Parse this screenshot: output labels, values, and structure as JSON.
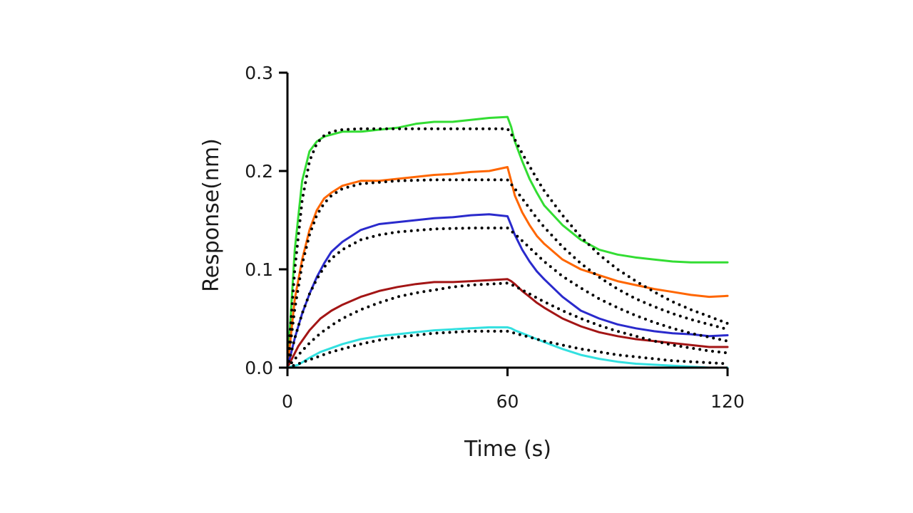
{
  "chart_data": {
    "type": "line",
    "title": "",
    "xlabel": "Time (s)",
    "ylabel": "Response(nm)",
    "xlim": [
      0,
      120
    ],
    "ylim": [
      0,
      0.3
    ],
    "x_ticks": [
      0,
      60,
      120
    ],
    "x_tick_labels": [
      "0",
      "60",
      "120"
    ],
    "y_ticks": [
      0,
      0.1,
      0.2,
      0.3
    ],
    "y_tick_labels": [
      "0.0",
      "0.1",
      "0.2",
      "0.3"
    ],
    "grid": false,
    "legend": "none",
    "series": [
      {
        "color": "#33dd33",
        "x": [
          0,
          2,
          4,
          6,
          8,
          10,
          15,
          20,
          25,
          30,
          35,
          40,
          45,
          50,
          55,
          60,
          61,
          62,
          64,
          66,
          68,
          70,
          75,
          80,
          85,
          90,
          95,
          100,
          105,
          110,
          115,
          120
        ],
        "y": [
          0,
          0.12,
          0.19,
          0.22,
          0.23,
          0.235,
          0.24,
          0.24,
          0.242,
          0.244,
          0.248,
          0.25,
          0.25,
          0.252,
          0.254,
          0.255,
          0.245,
          0.23,
          0.21,
          0.192,
          0.178,
          0.165,
          0.145,
          0.13,
          0.12,
          0.115,
          0.112,
          0.11,
          0.108,
          0.107,
          0.107,
          0.107
        ]
      },
      {
        "color": "#ff6600",
        "x": [
          0,
          2,
          4,
          6,
          8,
          10,
          12,
          15,
          20,
          25,
          30,
          35,
          40,
          45,
          50,
          55,
          60,
          61,
          62,
          64,
          66,
          68,
          70,
          75,
          80,
          85,
          90,
          95,
          100,
          105,
          110,
          115,
          120
        ],
        "y": [
          0,
          0.07,
          0.11,
          0.14,
          0.16,
          0.172,
          0.178,
          0.185,
          0.19,
          0.19,
          0.192,
          0.194,
          0.196,
          0.197,
          0.199,
          0.2,
          0.204,
          0.19,
          0.175,
          0.158,
          0.145,
          0.134,
          0.126,
          0.11,
          0.1,
          0.094,
          0.088,
          0.084,
          0.08,
          0.077,
          0.074,
          0.072,
          0.073
        ]
      },
      {
        "color": "#2a2acc",
        "x": [
          0,
          2,
          4,
          6,
          8,
          10,
          12,
          15,
          20,
          25,
          30,
          35,
          40,
          45,
          50,
          55,
          60,
          61,
          62,
          64,
          66,
          68,
          70,
          75,
          80,
          85,
          90,
          95,
          100,
          105,
          110,
          115,
          120
        ],
        "y": [
          0,
          0.03,
          0.055,
          0.075,
          0.092,
          0.106,
          0.118,
          0.128,
          0.14,
          0.146,
          0.148,
          0.15,
          0.152,
          0.153,
          0.155,
          0.156,
          0.154,
          0.145,
          0.135,
          0.12,
          0.108,
          0.098,
          0.09,
          0.072,
          0.058,
          0.05,
          0.044,
          0.04,
          0.037,
          0.035,
          0.034,
          0.032,
          0.033
        ]
      },
      {
        "color": "#a31515",
        "x": [
          0,
          3,
          6,
          9,
          12,
          15,
          20,
          25,
          30,
          35,
          40,
          45,
          50,
          55,
          60,
          61,
          62,
          64,
          66,
          68,
          70,
          75,
          80,
          85,
          90,
          95,
          100,
          105,
          110,
          115,
          120
        ],
        "y": [
          0,
          0.022,
          0.038,
          0.05,
          0.058,
          0.064,
          0.072,
          0.078,
          0.082,
          0.085,
          0.087,
          0.087,
          0.088,
          0.089,
          0.09,
          0.088,
          0.085,
          0.078,
          0.072,
          0.066,
          0.061,
          0.05,
          0.042,
          0.036,
          0.032,
          0.029,
          0.027,
          0.025,
          0.023,
          0.021,
          0.021
        ]
      },
      {
        "color": "#33e0e0",
        "x": [
          0,
          3,
          6,
          9,
          12,
          15,
          20,
          25,
          30,
          35,
          40,
          45,
          50,
          55,
          60,
          61,
          62,
          64,
          66,
          68,
          70,
          75,
          80,
          85,
          90,
          95,
          100,
          105,
          110,
          115,
          120
        ],
        "y": [
          0,
          0.003,
          0.01,
          0.016,
          0.02,
          0.024,
          0.029,
          0.032,
          0.034,
          0.036,
          0.038,
          0.039,
          0.04,
          0.041,
          0.041,
          0.04,
          0.038,
          0.035,
          0.032,
          0.029,
          0.026,
          0.019,
          0.013,
          0.009,
          0.006,
          0.004,
          0.003,
          0.002,
          0.001,
          0.0,
          0.0
        ]
      },
      {
        "color": "#000000",
        "style": "dotted",
        "x": [
          0,
          2,
          4,
          6,
          8,
          10,
          12,
          15,
          20,
          30,
          40,
          50,
          60,
          62,
          64,
          66,
          68,
          70,
          75,
          80,
          85,
          90,
          95,
          100,
          105,
          110,
          115,
          120
        ],
        "y": [
          0,
          0.1,
          0.17,
          0.21,
          0.228,
          0.236,
          0.24,
          0.242,
          0.243,
          0.243,
          0.243,
          0.243,
          0.243,
          0.232,
          0.218,
          0.205,
          0.192,
          0.18,
          0.155,
          0.133,
          0.115,
          0.1,
          0.088,
          0.077,
          0.067,
          0.059,
          0.052,
          0.045
        ]
      },
      {
        "color": "#000000",
        "style": "dotted",
        "x": [
          0,
          2,
          4,
          6,
          8,
          10,
          12,
          15,
          20,
          30,
          40,
          50,
          60,
          62,
          64,
          66,
          68,
          70,
          75,
          80,
          85,
          90,
          95,
          100,
          105,
          110,
          115,
          120
        ],
        "y": [
          0,
          0.06,
          0.105,
          0.135,
          0.155,
          0.167,
          0.175,
          0.182,
          0.187,
          0.19,
          0.191,
          0.191,
          0.191,
          0.182,
          0.172,
          0.162,
          0.152,
          0.143,
          0.123,
          0.106,
          0.092,
          0.08,
          0.07,
          0.062,
          0.055,
          0.049,
          0.044,
          0.039
        ]
      },
      {
        "color": "#000000",
        "style": "dotted",
        "x": [
          0,
          2,
          4,
          6,
          8,
          10,
          12,
          15,
          20,
          25,
          30,
          40,
          50,
          60,
          62,
          64,
          66,
          68,
          70,
          75,
          80,
          85,
          90,
          95,
          100,
          105,
          110,
          115,
          120
        ],
        "y": [
          0,
          0.03,
          0.055,
          0.075,
          0.09,
          0.102,
          0.111,
          0.12,
          0.13,
          0.135,
          0.138,
          0.141,
          0.142,
          0.142,
          0.136,
          0.129,
          0.122,
          0.115,
          0.108,
          0.093,
          0.081,
          0.07,
          0.061,
          0.053,
          0.046,
          0.04,
          0.035,
          0.031,
          0.027
        ]
      },
      {
        "color": "#000000",
        "style": "dotted",
        "x": [
          0,
          3,
          6,
          9,
          12,
          15,
          20,
          25,
          30,
          35,
          40,
          45,
          50,
          55,
          60,
          62,
          64,
          66,
          68,
          70,
          75,
          80,
          85,
          90,
          95,
          100,
          105,
          110,
          115,
          120
        ],
        "y": [
          0,
          0.013,
          0.025,
          0.035,
          0.043,
          0.05,
          0.059,
          0.066,
          0.072,
          0.076,
          0.079,
          0.082,
          0.084,
          0.085,
          0.086,
          0.083,
          0.079,
          0.075,
          0.071,
          0.067,
          0.058,
          0.05,
          0.043,
          0.037,
          0.032,
          0.027,
          0.023,
          0.02,
          0.017,
          0.015
        ]
      },
      {
        "color": "#000000",
        "style": "dotted",
        "x": [
          0,
          3,
          6,
          9,
          12,
          15,
          20,
          25,
          30,
          35,
          40,
          45,
          50,
          55,
          60,
          62,
          64,
          66,
          68,
          70,
          75,
          80,
          85,
          90,
          95,
          100,
          105,
          110,
          115,
          120
        ],
        "y": [
          0,
          0.004,
          0.008,
          0.012,
          0.016,
          0.019,
          0.024,
          0.028,
          0.031,
          0.033,
          0.035,
          0.036,
          0.037,
          0.037,
          0.037,
          0.035,
          0.033,
          0.031,
          0.029,
          0.027,
          0.023,
          0.019,
          0.016,
          0.013,
          0.011,
          0.009,
          0.007,
          0.006,
          0.005,
          0.004
        ]
      }
    ]
  }
}
